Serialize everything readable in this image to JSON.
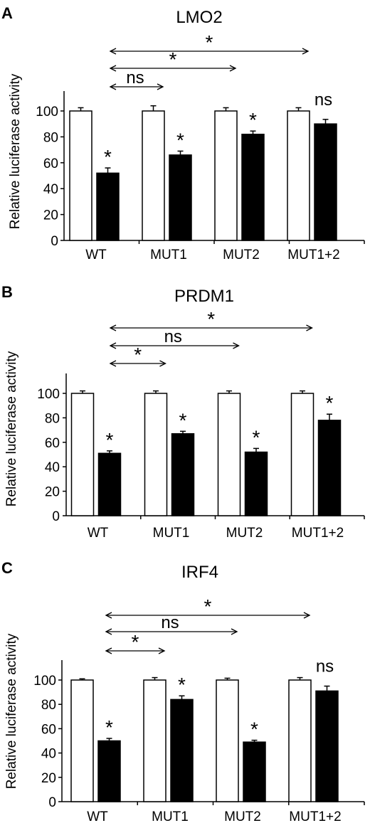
{
  "chart_data": [
    {
      "panel": "A",
      "type": "bar",
      "title": "LMO2",
      "ylabel": "Relative luciferase activity",
      "categories": [
        "WT",
        "MUT1",
        "MUT2",
        "MUT1+2"
      ],
      "yticks": [
        "0",
        "20",
        "40",
        "60",
        "80",
        "100"
      ],
      "ylim": [
        0,
        120
      ],
      "series": [
        {
          "fill": "#ffffff",
          "values": [
            100,
            100,
            100,
            100
          ],
          "errors": [
            2.5,
            4,
            2.5,
            2.5
          ]
        },
        {
          "fill": "#000000",
          "values": [
            52,
            66,
            82,
            90
          ],
          "errors": [
            4,
            3,
            2.5,
            3.5
          ]
        }
      ],
      "bar_marks": [
        "*",
        "*",
        "*",
        "ns"
      ],
      "comparisons": [
        {
          "to": "MUT1",
          "label": "ns"
        },
        {
          "to": "MUT2",
          "label": "*"
        },
        {
          "to": "MUT1+2",
          "label": "*"
        }
      ]
    },
    {
      "panel": "B",
      "type": "bar",
      "title": "PRDM1",
      "ylabel": "Relative luciferase activity",
      "categories": [
        "WT",
        "MUT1",
        "MUT2",
        "MUT1+2"
      ],
      "yticks": [
        "0",
        "20",
        "40",
        "60",
        "80",
        "100"
      ],
      "ylim": [
        0,
        120
      ],
      "series": [
        {
          "fill": "#ffffff",
          "values": [
            100,
            100,
            100,
            100
          ],
          "errors": [
            2,
            2,
            2,
            2
          ]
        },
        {
          "fill": "#000000",
          "values": [
            51,
            67,
            52,
            78
          ],
          "errors": [
            2,
            2,
            3,
            5
          ]
        }
      ],
      "bar_marks": [
        "*",
        "*",
        "*",
        "*"
      ],
      "comparisons": [
        {
          "to": "MUT1",
          "label": "*"
        },
        {
          "to": "MUT2",
          "label": "ns"
        },
        {
          "to": "MUT1+2",
          "label": "*"
        }
      ]
    },
    {
      "panel": "C",
      "type": "bar",
      "title": "IRF4",
      "ylabel": "Relative luciferase activity",
      "categories": [
        "WT",
        "MUT1",
        "MUT2",
        "MUT1+2"
      ],
      "yticks": [
        "0",
        "20",
        "40",
        "60",
        "80",
        "100"
      ],
      "ylim": [
        0,
        120
      ],
      "series": [
        {
          "fill": "#ffffff",
          "values": [
            100,
            100,
            100,
            100
          ],
          "errors": [
            1,
            2,
            1.5,
            2
          ]
        },
        {
          "fill": "#000000",
          "values": [
            50,
            84,
            49,
            91
          ],
          "errors": [
            2,
            3,
            1.5,
            4
          ]
        }
      ],
      "bar_marks": [
        "*",
        "*",
        "*",
        "ns"
      ],
      "comparisons": [
        {
          "to": "MUT1",
          "label": "*"
        },
        {
          "to": "MUT2",
          "label": "ns"
        },
        {
          "to": "MUT1+2",
          "label": "*"
        }
      ]
    }
  ]
}
